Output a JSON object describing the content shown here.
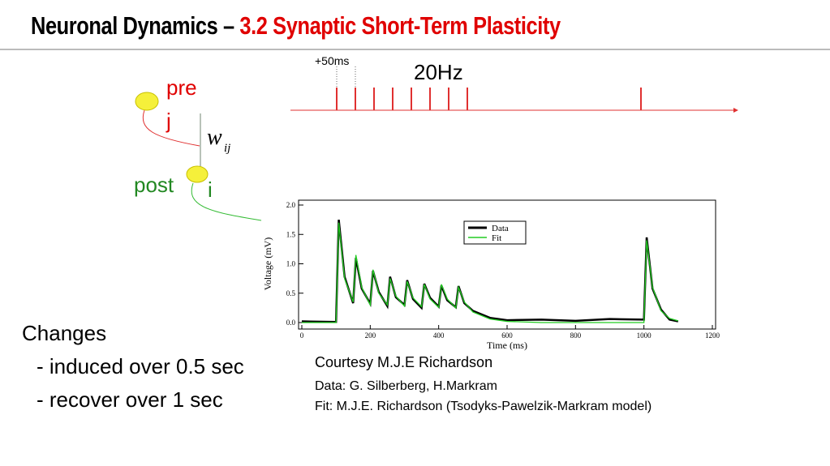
{
  "header": {
    "title_main": "Neuronal Dynamics –",
    "title_sub": "3.2 Synaptic Short-Term Plasticity"
  },
  "diagram": {
    "pre_label": "pre",
    "pre_index": "j",
    "post_label": "post",
    "post_index": "i",
    "weight": "w",
    "weight_sub": "ij"
  },
  "spike_train": {
    "offset_label": "+50ms",
    "rate_label": "20Hz"
  },
  "notes": {
    "heading": "Changes",
    "line1": "- induced over 0.5 sec",
    "line2": "- recover over 1 sec"
  },
  "credits": [
    "Courtesy M.J.E Richardson",
    "Data: G. Silberberg,  H.Markram",
    "Fit: M.J.E. Richardson  (Tsodyks-Pawelzik-Markram model)"
  ],
  "chart_data": {
    "type": "line",
    "xlabel": "Time (ms)",
    "ylabel": "Voltage (mV)",
    "xlim": [
      0,
      1200
    ],
    "xticks": [
      0,
      200,
      400,
      600,
      800,
      1000,
      1200
    ],
    "ylim": [
      0,
      2
    ],
    "yticks": [
      {
        "value": 0,
        "label": "0.0"
      },
      {
        "value": 0.5,
        "label": "0.5"
      },
      {
        "value": 1,
        "label": "1.0"
      },
      {
        "value": 1.5,
        "label": "1.5"
      },
      {
        "value": 2,
        "label": "2.0"
      }
    ],
    "legend": "upper right",
    "x": [
      0,
      100,
      108,
      125,
      150,
      158,
      175,
      200,
      208,
      225,
      250,
      258,
      275,
      300,
      308,
      325,
      350,
      358,
      375,
      400,
      408,
      425,
      450,
      458,
      475,
      500,
      550,
      600,
      700,
      800,
      900,
      1000,
      1008,
      1025,
      1050,
      1075,
      1100
    ],
    "series": [
      {
        "name": "Data",
        "color": "#000000",
        "values": [
          0.02,
          0.01,
          1.75,
          0.78,
          0.33,
          1.1,
          0.58,
          0.32,
          0.88,
          0.52,
          0.28,
          0.78,
          0.43,
          0.3,
          0.72,
          0.4,
          0.25,
          0.66,
          0.42,
          0.27,
          0.63,
          0.38,
          0.26,
          0.62,
          0.33,
          0.2,
          0.08,
          0.04,
          0.05,
          0.03,
          0.06,
          0.05,
          1.45,
          0.58,
          0.22,
          0.05,
          0.02
        ]
      },
      {
        "name": "Fit",
        "color": "#22cc22",
        "values": [
          0,
          0,
          1.7,
          0.75,
          0.35,
          1.15,
          0.6,
          0.3,
          0.9,
          0.5,
          0.3,
          0.75,
          0.45,
          0.28,
          0.7,
          0.42,
          0.27,
          0.65,
          0.4,
          0.26,
          0.65,
          0.4,
          0.25,
          0.6,
          0.35,
          0.18,
          0.06,
          0.02,
          0,
          0,
          0,
          0,
          1.4,
          0.6,
          0.2,
          0.07,
          0.03
        ]
      }
    ]
  }
}
